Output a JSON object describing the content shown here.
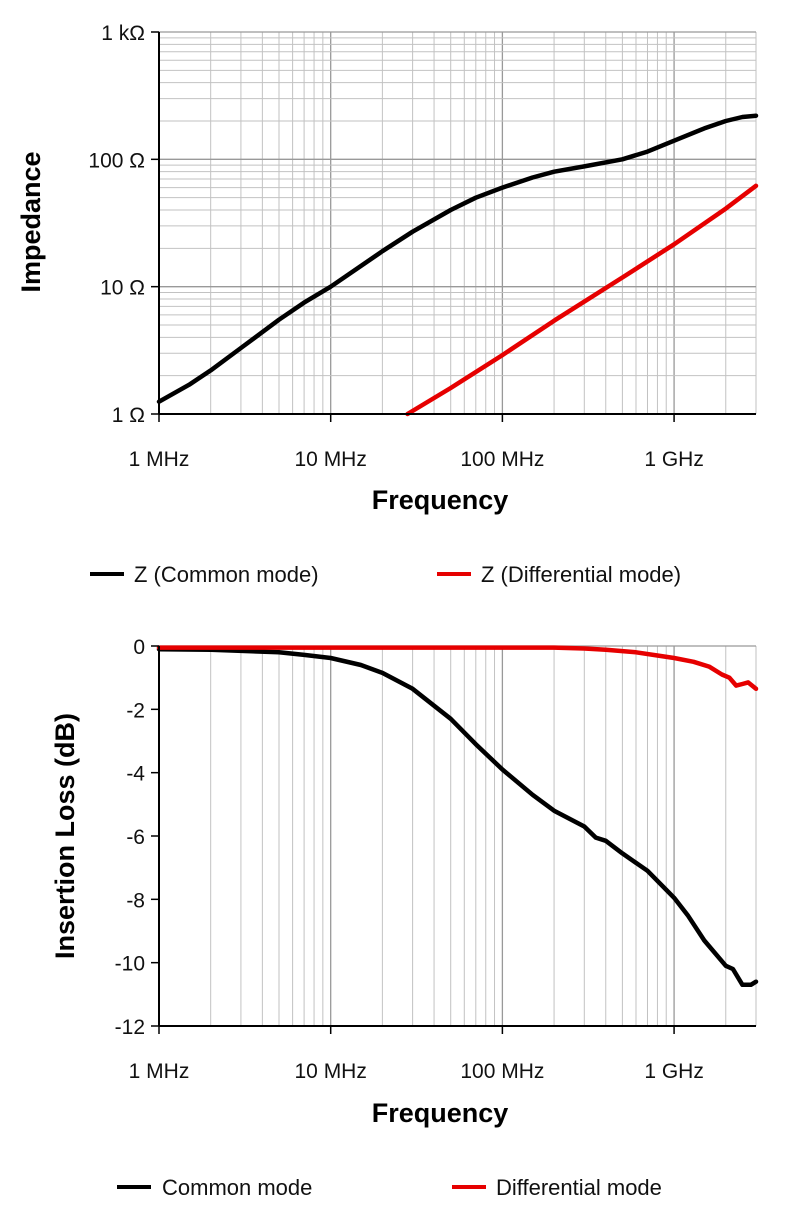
{
  "chart_data": [
    {
      "type": "line",
      "xlabel": "Frequency",
      "ylabel": "Impedance",
      "xscale": "log",
      "yscale": "log",
      "xlim": [
        1,
        3000
      ],
      "ylim": [
        1,
        1000
      ],
      "xtick_labels": [
        "1 MHz",
        "10 MHz",
        "100 MHz",
        "1 GHz"
      ],
      "ytick_labels": [
        "1 Ω",
        "10 Ω",
        "100 Ω",
        "1 kΩ"
      ],
      "grid": true,
      "legend_position": "bottom",
      "series": [
        {
          "name": "Z (Common mode)",
          "color": "#000000",
          "x": [
            1,
            1.5,
            2,
            3,
            5,
            7,
            10,
            20,
            30,
            50,
            70,
            100,
            150,
            200,
            300,
            500,
            700,
            1000,
            1500,
            2000,
            2500,
            3000
          ],
          "y": [
            1.25,
            1.7,
            2.2,
            3.3,
            5.5,
            7.5,
            10,
            19,
            27,
            40,
            50,
            60,
            72,
            80,
            88,
            100,
            115,
            140,
            175,
            200,
            215,
            220
          ]
        },
        {
          "name": "Z (Differential mode)",
          "color": "#e60000",
          "x": [
            28,
            50,
            100,
            200,
            500,
            1000,
            2000,
            3000
          ],
          "y": [
            1,
            1.6,
            2.9,
            5.4,
            11.8,
            21.5,
            41,
            62
          ]
        }
      ]
    },
    {
      "type": "line",
      "xlabel": "Frequency",
      "ylabel": "Insertion Loss (dB)",
      "xscale": "log",
      "xlim": [
        1,
        3000
      ],
      "ylim": [
        -12,
        0
      ],
      "xtick_labels": [
        "1 MHz",
        "10 MHz",
        "100 MHz",
        "1 GHz"
      ],
      "ytick_labels": [
        "0",
        "-2",
        "-4",
        "-6",
        "-8",
        "-10",
        "-12"
      ],
      "grid": true,
      "legend_position": "bottom",
      "series": [
        {
          "name": "Common mode",
          "color": "#000000",
          "x": [
            1,
            2,
            5,
            7,
            10,
            15,
            20,
            30,
            50,
            70,
            100,
            150,
            200,
            300,
            350,
            400,
            500,
            700,
            1000,
            1200,
            1500,
            2000,
            2200,
            2500,
            2800,
            3000
          ],
          "y": [
            -0.1,
            -0.12,
            -0.2,
            -0.28,
            -0.38,
            -0.6,
            -0.85,
            -1.35,
            -2.3,
            -3.1,
            -3.9,
            -4.7,
            -5.2,
            -5.7,
            -6.05,
            -6.15,
            -6.55,
            -7.1,
            -7.95,
            -8.5,
            -9.3,
            -10.1,
            -10.2,
            -10.7,
            -10.7,
            -10.6
          ]
        },
        {
          "name": "Differential mode",
          "color": "#e60000",
          "x": [
            1,
            10,
            100,
            200,
            300,
            400,
            600,
            800,
            1000,
            1300,
            1600,
            1900,
            2100,
            2300,
            2500,
            2700,
            3000
          ],
          "y": [
            -0.05,
            -0.05,
            -0.05,
            -0.05,
            -0.08,
            -0.12,
            -0.2,
            -0.3,
            -0.38,
            -0.5,
            -0.65,
            -0.9,
            -1.0,
            -1.25,
            -1.2,
            -1.15,
            -1.35
          ]
        }
      ]
    }
  ]
}
